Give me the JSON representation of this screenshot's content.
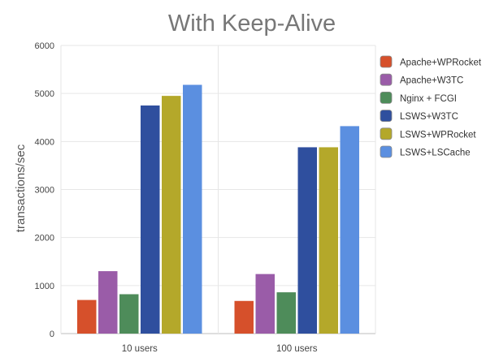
{
  "chart_data": {
    "type": "bar",
    "title": "With Keep-Alive",
    "xlabel": "",
    "ylabel": "transactions/sec",
    "ylim": [
      0,
      6000
    ],
    "yticks": [
      0,
      1000,
      2000,
      3000,
      4000,
      5000,
      6000
    ],
    "categories": [
      "10 users",
      "100 users"
    ],
    "grid": true,
    "legend_position": "right",
    "series": [
      {
        "name": "Apache+WPRocket",
        "color": "#d6502b",
        "values": [
          700,
          680
        ]
      },
      {
        "name": "Apache+W3TC",
        "color": "#9a5ca8",
        "values": [
          1300,
          1240
        ]
      },
      {
        "name": "Nginx + FCGI",
        "color": "#4e8c5a",
        "values": [
          820,
          860
        ]
      },
      {
        "name": "LSWS+W3TC",
        "color": "#2f4f9e",
        "values": [
          4750,
          3880
        ]
      },
      {
        "name": "LSWS+WPRocket",
        "color": "#b4a82a",
        "values": [
          4950,
          3880
        ]
      },
      {
        "name": "LSWS+LSCache",
        "color": "#5b8fe0",
        "values": [
          5180,
          4320
        ]
      }
    ]
  }
}
